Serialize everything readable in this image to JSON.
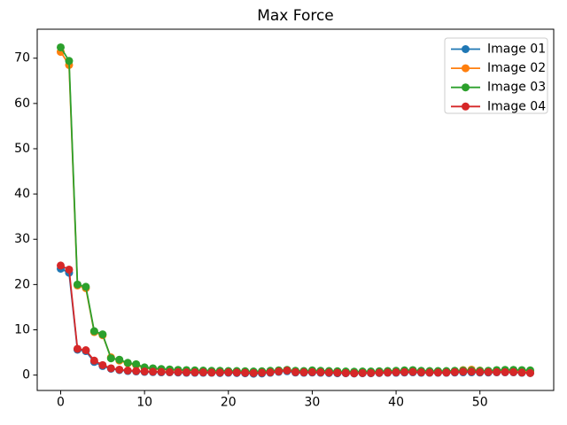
{
  "figure": {
    "title": "Max Force",
    "background": "#ffffff"
  },
  "chart_data": {
    "type": "line",
    "title": "Max Force",
    "xlabel": "",
    "ylabel": "",
    "grid": false,
    "legend_position": "upper right",
    "marker": "o",
    "xlim": [
      -2.8,
      58.8
    ],
    "ylim": [
      -3.4,
      76.4
    ],
    "xticks": [
      0,
      10,
      20,
      30,
      40,
      50
    ],
    "yticks": [
      0,
      10,
      20,
      30,
      40,
      50,
      60,
      70
    ],
    "x": [
      0,
      1,
      2,
      3,
      4,
      5,
      6,
      7,
      8,
      9,
      10,
      11,
      12,
      13,
      14,
      15,
      16,
      17,
      18,
      19,
      20,
      21,
      22,
      23,
      24,
      25,
      26,
      27,
      28,
      29,
      30,
      31,
      32,
      33,
      34,
      35,
      36,
      37,
      38,
      39,
      40,
      41,
      42,
      43,
      44,
      45,
      46,
      47,
      48,
      49,
      50,
      51,
      52,
      53,
      54,
      55,
      56
    ],
    "series": [
      {
        "name": "Image 01",
        "color": "#1f77b4",
        "values": [
          23.5,
          22.6,
          5.6,
          5.3,
          2.9,
          2.0,
          1.4,
          1.1,
          0.9,
          0.8,
          0.7,
          0.65,
          0.6,
          0.6,
          0.55,
          0.5,
          0.5,
          0.5,
          0.5,
          0.45,
          0.5,
          0.45,
          0.4,
          0.3,
          0.35,
          0.5,
          0.7,
          0.85,
          0.55,
          0.5,
          0.55,
          0.5,
          0.45,
          0.4,
          0.4,
          0.35,
          0.4,
          0.4,
          0.45,
          0.5,
          0.5,
          0.55,
          0.6,
          0.5,
          0.5,
          0.5,
          0.5,
          0.55,
          0.6,
          0.6,
          0.55,
          0.55,
          0.6,
          0.6,
          0.6,
          0.5,
          0.45
        ]
      },
      {
        "name": "Image 02",
        "color": "#ff7f0e",
        "values": [
          71.4,
          68.5,
          19.8,
          19.2,
          9.5,
          8.8,
          3.9,
          3.2,
          2.6,
          2.2,
          1.6,
          1.4,
          1.25,
          1.15,
          1.05,
          1.0,
          0.95,
          0.9,
          0.85,
          0.85,
          0.8,
          0.8,
          0.75,
          0.7,
          0.75,
          0.85,
          1.0,
          1.1,
          0.85,
          0.8,
          0.95,
          0.85,
          0.8,
          0.75,
          0.7,
          0.65,
          0.7,
          0.7,
          0.75,
          0.8,
          0.85,
          0.95,
          1.0,
          0.85,
          0.8,
          0.8,
          0.8,
          0.9,
          1.1,
          1.2,
          1.0,
          0.9,
          0.9,
          0.9,
          0.85,
          0.8,
          0.75
        ]
      },
      {
        "name": "Image 03",
        "color": "#2ca02c",
        "values": [
          72.4,
          69.4,
          20.0,
          19.5,
          9.7,
          9.0,
          3.7,
          3.4,
          2.7,
          2.4,
          1.7,
          1.5,
          1.35,
          1.25,
          1.15,
          1.1,
          1.05,
          1.0,
          0.95,
          0.95,
          0.9,
          0.9,
          0.85,
          0.8,
          0.85,
          0.95,
          1.05,
          1.15,
          0.95,
          0.9,
          1.05,
          0.95,
          0.9,
          0.85,
          0.8,
          0.75,
          0.8,
          0.8,
          0.85,
          0.9,
          0.95,
          1.05,
          1.1,
          0.95,
          0.9,
          0.9,
          0.9,
          0.95,
          1.0,
          1.0,
          0.95,
          0.95,
          1.1,
          1.15,
          1.15,
          1.1,
          1.05
        ]
      },
      {
        "name": "Image 04",
        "color": "#d62728",
        "values": [
          24.2,
          23.3,
          5.8,
          5.5,
          3.2,
          2.2,
          1.5,
          1.2,
          1.0,
          0.9,
          0.8,
          0.75,
          0.7,
          0.65,
          0.65,
          0.6,
          0.6,
          0.6,
          0.55,
          0.55,
          0.6,
          0.55,
          0.5,
          0.45,
          0.5,
          0.6,
          0.8,
          1.0,
          0.65,
          0.6,
          0.65,
          0.6,
          0.55,
          0.5,
          0.45,
          0.4,
          0.45,
          0.45,
          0.5,
          0.55,
          0.6,
          0.65,
          0.7,
          0.6,
          0.55,
          0.55,
          0.55,
          0.65,
          0.75,
          0.75,
          0.65,
          0.65,
          0.65,
          0.65,
          0.65,
          0.55,
          0.45
        ]
      }
    ],
    "styles": {
      "spine_color": "#000000",
      "tick_color": "#000000",
      "legend_border_color": "#cccccc",
      "legend_background": "#ffffff"
    }
  }
}
